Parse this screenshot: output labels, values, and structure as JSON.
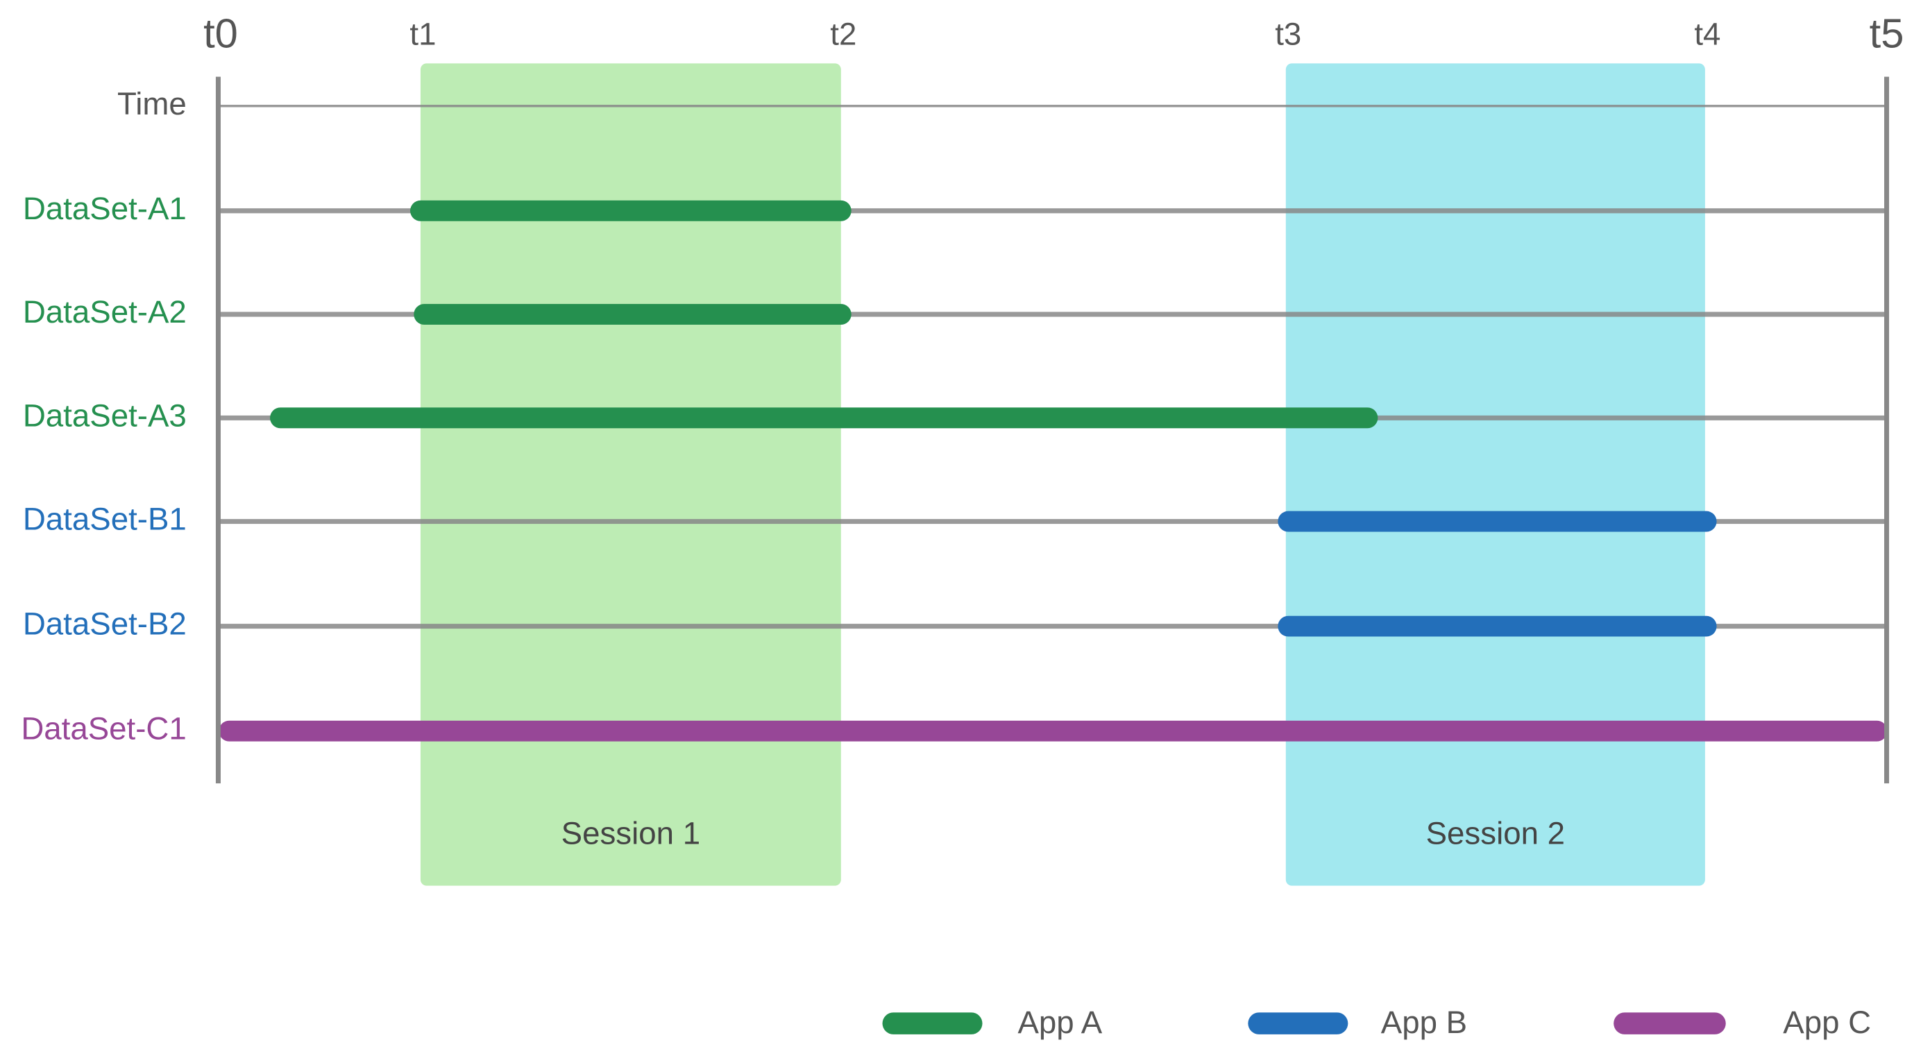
{
  "time_markers": [
    "t0",
    "t1",
    "t2",
    "t3",
    "t4",
    "t5"
  ],
  "rows": [
    {
      "label": "Time",
      "color": "#555555"
    },
    {
      "label": "DataSet-A1",
      "color": "#25904f"
    },
    {
      "label": "DataSet-A2",
      "color": "#25904f"
    },
    {
      "label": "DataSet-A3",
      "color": "#25904f"
    },
    {
      "label": "DataSet-B1",
      "color": "#236fba"
    },
    {
      "label": "DataSet-B2",
      "color": "#236fba"
    },
    {
      "label": "DataSet-C1",
      "color": "#974797"
    }
  ],
  "sessions": [
    {
      "label": "Session 1",
      "color": "#bdecb4"
    },
    {
      "label": "Session 2",
      "color": "#a2e8ef"
    }
  ],
  "legend": [
    {
      "label": "App A",
      "color": "#25904f"
    },
    {
      "label": "App B",
      "color": "#236fba"
    },
    {
      "label": "App C",
      "color": "#974797"
    }
  ]
}
